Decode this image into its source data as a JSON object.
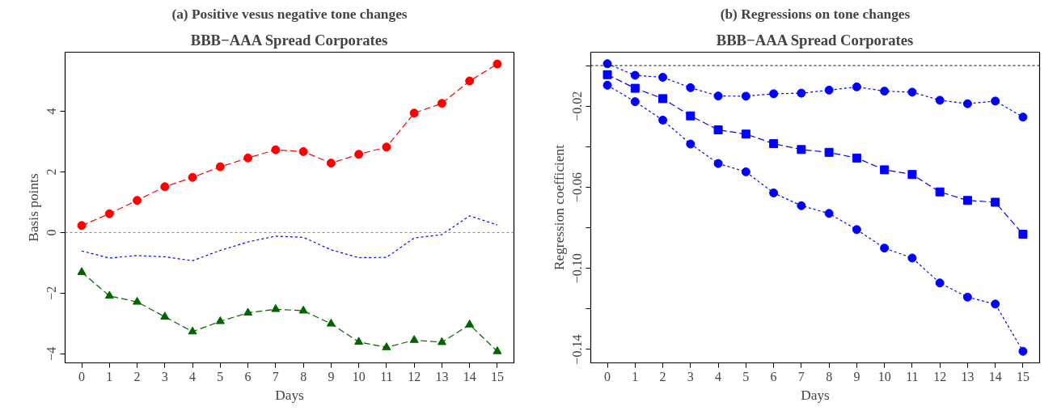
{
  "chart_data": [
    {
      "type": "line",
      "title": "(a) Positive vesus negative tone changes",
      "subtitle": "BBB−AAA Spread Corporates",
      "xlabel": "Days",
      "ylabel": "Basis points",
      "x": [
        0,
        1,
        2,
        3,
        4,
        5,
        6,
        7,
        8,
        9,
        10,
        11,
        12,
        13,
        14,
        15
      ],
      "xlim": [
        -0.6,
        15.6
      ],
      "xticks": [
        0,
        1,
        2,
        3,
        4,
        5,
        6,
        7,
        8,
        9,
        10,
        11,
        12,
        13,
        14,
        15
      ],
      "ylim": [
        -4.3,
        5.95
      ],
      "yticks": [
        {
          "value": -4,
          "label": "−4"
        },
        {
          "value": -2,
          "label": "−2"
        },
        0,
        2,
        4
      ],
      "grid": false,
      "ref_lines": [
        {
          "axis": "y",
          "value": 0,
          "color": "#808080",
          "line_style": "dotted"
        }
      ],
      "series": [
        {
          "color": "#ff0000",
          "marker": "circle",
          "line_style": "dashed",
          "values": [
            0.23,
            0.62,
            1.06,
            1.51,
            1.82,
            2.17,
            2.46,
            2.73,
            2.67,
            2.29,
            2.58,
            2.82,
            3.94,
            4.26,
            5.0,
            5.56
          ]
        },
        {
          "color": "#0000ff",
          "marker": "none",
          "line_style": "dotted",
          "values": [
            -0.61,
            -0.84,
            -0.76,
            -0.8,
            -0.93,
            -0.59,
            -0.31,
            -0.12,
            -0.16,
            -0.57,
            -0.83,
            -0.82,
            -0.18,
            -0.07,
            0.55,
            0.25
          ]
        },
        {
          "color": "#006400",
          "marker": "triangle",
          "line_style": "dashed",
          "values": [
            -1.31,
            -2.09,
            -2.29,
            -2.78,
            -3.27,
            -2.93,
            -2.65,
            -2.53,
            -2.58,
            -3.01,
            -3.61,
            -3.79,
            -3.55,
            -3.62,
            -3.04,
            -3.92
          ]
        }
      ]
    },
    {
      "type": "line",
      "title": "(b) Regressions on tone changes",
      "subtitle": "BBB−AAA Spread Corporates",
      "xlabel": "Days",
      "ylabel": "Regression coefficient",
      "x": [
        0,
        1,
        2,
        3,
        4,
        5,
        6,
        7,
        8,
        9,
        10,
        11,
        12,
        13,
        14,
        15
      ],
      "xlim": [
        -0.6,
        15.6
      ],
      "xticks": [
        0,
        1,
        2,
        3,
        4,
        5,
        6,
        7,
        8,
        9,
        10,
        11,
        12,
        13,
        14,
        15
      ],
      "ylim": [
        -0.1466,
        0.0066
      ],
      "yticks": [
        {
          "value": -0.14,
          "label": "−0.14"
        },
        {
          "value": -0.12,
          "label": null
        },
        {
          "value": -0.1,
          "label": "−0.10"
        },
        {
          "value": -0.08,
          "label": null
        },
        {
          "value": -0.06,
          "label": "−0.06"
        },
        {
          "value": -0.04,
          "label": null
        },
        {
          "value": -0.02,
          "label": "−0.02"
        },
        {
          "value": 0,
          "label": null
        }
      ],
      "grid": false,
      "ref_lines": [
        {
          "axis": "y",
          "value": 0,
          "color": "#000000",
          "line_style": "dotted"
        }
      ],
      "series": [
        {
          "color": "#0000ff",
          "marker": "circle",
          "line_style": "dotted",
          "values": [
            0.0009,
            -0.0048,
            -0.0058,
            -0.0109,
            -0.015,
            -0.0151,
            -0.0139,
            -0.0136,
            -0.0121,
            -0.0105,
            -0.0126,
            -0.0131,
            -0.0171,
            -0.0188,
            -0.0175,
            -0.0254
          ]
        },
        {
          "color": "#0000ff",
          "marker": "square",
          "line_style": "dashed",
          "values": [
            -0.0045,
            -0.0112,
            -0.0163,
            -0.0248,
            -0.0317,
            -0.0338,
            -0.0385,
            -0.0414,
            -0.0428,
            -0.0456,
            -0.0514,
            -0.0537,
            -0.0623,
            -0.0665,
            -0.0674,
            -0.0832
          ]
        },
        {
          "color": "#0000ff",
          "marker": "circle",
          "line_style": "dotted",
          "values": [
            -0.0097,
            -0.0178,
            -0.0269,
            -0.0387,
            -0.0483,
            -0.0524,
            -0.0628,
            -0.0691,
            -0.0729,
            -0.0809,
            -0.09,
            -0.0949,
            -0.1072,
            -0.1142,
            -0.1176,
            -0.1409
          ]
        }
      ]
    }
  ]
}
